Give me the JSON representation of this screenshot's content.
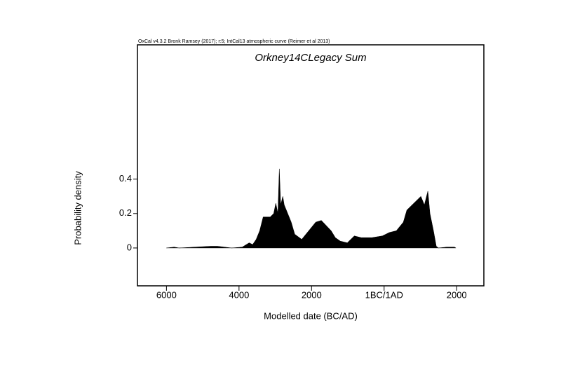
{
  "chart_data": {
    "type": "area",
    "header": "OxCal v4.3.2 Bronk Ramsey (2017); r:5; IntCal13 atmospheric curve (Reimer et al 2013)",
    "title": "Orkney14CLegacy Sum",
    "xlabel": "Modelled date (BC/AD)",
    "ylabel": "Probability density",
    "color": "#000000",
    "x": [
      -6000,
      -5787,
      -5652,
      -4783,
      -4590,
      -4400,
      -4203,
      -3913,
      -3720,
      -3624,
      -3527,
      -3430,
      -3334,
      -3141,
      -3044,
      -2986,
      -2928,
      -2889,
      -2851,
      -2793,
      -2754,
      -2657,
      -2561,
      -2464,
      -2271,
      -2078,
      -1885,
      -1730,
      -1595,
      -1460,
      -1344,
      -1209,
      -1016,
      -822,
      -629,
      -339,
      -49,
      144,
      337,
      530,
      627,
      723,
      917,
      1013,
      1110,
      1206,
      1264,
      1361,
      1438,
      1496,
      1728,
      1940,
      1979
    ],
    "y": [
      0,
      0.005,
      0,
      0.01,
      0.01,
      0.005,
      0,
      0.005,
      0.03,
      0.02,
      0.05,
      0.1,
      0.18,
      0.18,
      0.2,
      0.26,
      0.2,
      0.46,
      0.25,
      0.3,
      0.25,
      0.2,
      0.15,
      0.08,
      0.05,
      0.1,
      0.15,
      0.16,
      0.13,
      0.1,
      0.06,
      0.04,
      0.03,
      0.07,
      0.06,
      0.06,
      0.07,
      0.09,
      0.1,
      0.15,
      0.22,
      0.24,
      0.28,
      0.3,
      0.25,
      0.33,
      0.2,
      0.1,
      0.01,
      0,
      0.005,
      0.005,
      0
    ],
    "xlim": [
      -6800,
      2750
    ],
    "ylim": [
      -0.22,
      1.18
    ],
    "xticks": [
      {
        "value": -6000,
        "label": "6000"
      },
      {
        "value": -4000,
        "label": "4000"
      },
      {
        "value": -2000,
        "label": "2000"
      },
      {
        "value": 0,
        "label": "1BC/1AD"
      },
      {
        "value": 2000,
        "label": "2000"
      }
    ],
    "yticks": [
      0,
      0.2,
      0.4
    ]
  }
}
